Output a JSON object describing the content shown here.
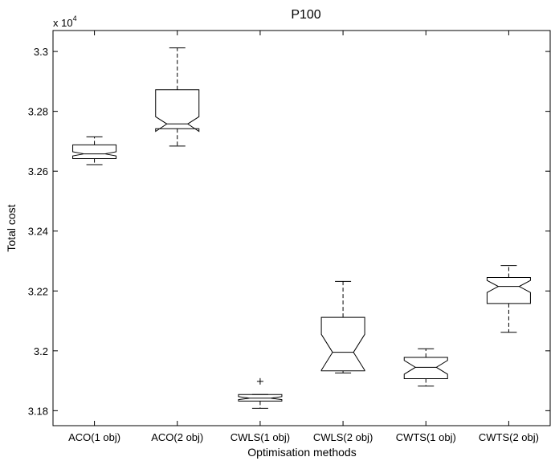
{
  "chart_data": {
    "type": "boxplot",
    "title": "P100",
    "xlabel": "Optimisation methods",
    "ylabel": "Total cost",
    "y_multiplier": {
      "base": "x 10",
      "exponent": "4"
    },
    "ylim": [
      3.175,
      3.307
    ],
    "yticks": [
      3.18,
      3.2,
      3.22,
      3.24,
      3.26,
      3.28,
      3.3
    ],
    "ytick_labels": [
      "3.18",
      "3.2",
      "3.22",
      "3.24",
      "3.26",
      "3.28",
      "3.3"
    ],
    "notched": true,
    "grid": false,
    "categories": [
      "ACO(1 obj)",
      "ACO(2 obj)",
      "CWLS(1 obj)",
      "CWLS(2 obj)",
      "CWTS(1 obj)",
      "CWTS(2 obj)"
    ],
    "boxes": [
      {
        "whisker_low": 3.2622,
        "q1": 3.2642,
        "median": 3.2658,
        "q3": 3.2688,
        "whisker_high": 3.2715,
        "notch_low": 3.2651,
        "notch_high": 3.2665,
        "outliers": []
      },
      {
        "whisker_low": 3.2684,
        "q1": 3.2742,
        "median": 3.2758,
        "q3": 3.2872,
        "whisker_high": 3.3012,
        "notch_low": 3.2733,
        "notch_high": 3.2782,
        "outliers": []
      },
      {
        "whisker_low": 3.1808,
        "q1": 3.1832,
        "median": 3.1842,
        "q3": 3.1854,
        "whisker_high": 3.1854,
        "notch_low": 3.1837,
        "notch_high": 3.1847,
        "outliers": [
          3.1898
        ]
      },
      {
        "whisker_low": 3.1926,
        "q1": 3.1933,
        "median": 3.1995,
        "q3": 3.2112,
        "whisker_high": 3.2232,
        "notch_low": 3.1935,
        "notch_high": 3.2055,
        "outliers": []
      },
      {
        "whisker_low": 3.1882,
        "q1": 3.1907,
        "median": 3.1945,
        "q3": 3.1978,
        "whisker_high": 3.2007,
        "notch_low": 3.1922,
        "notch_high": 3.1968,
        "outliers": []
      },
      {
        "whisker_low": 3.2062,
        "q1": 3.2158,
        "median": 3.2215,
        "q3": 3.2245,
        "whisker_high": 3.2285,
        "notch_low": 3.2195,
        "notch_high": 3.2235,
        "outliers": []
      }
    ]
  }
}
